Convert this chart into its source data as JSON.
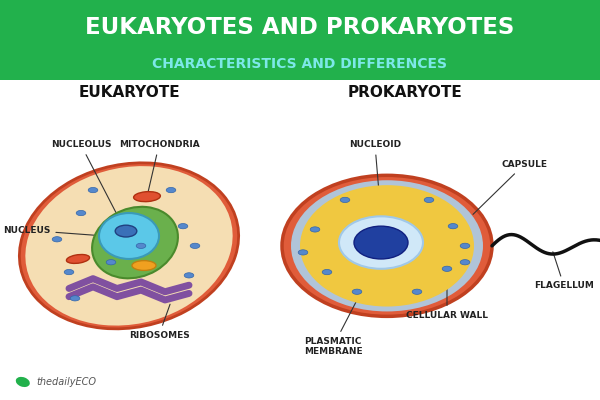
{
  "title_line1": "EUKARYOTES AND PROKARYOTES",
  "title_line2": "CHARACTERISTICS AND DIFFERENCES",
  "title_bg": "#22b14c",
  "title_color1": "#ffffff",
  "title_color2": "#7de8e8",
  "body_bg": "#ffffff",
  "eukaryote_label": "EUKARYOTE",
  "prokaryote_label": "PROKARYOTE",
  "annotation_color": "#222222",
  "watermark": "thedailyECO",
  "watermark_color": "#555555",
  "leaf_color": "#22b14c",
  "euk_outer_color": "#e05c3a",
  "euk_inner_color": "#f5deb3",
  "euk_green_color": "#6ab04c",
  "euk_nucleus_color": "#5bc8e8",
  "euk_nucleolus_color": "#3a70b8",
  "euk_mito_color": "#e05030",
  "euk_er_color": "#8050a0",
  "euk_golgi_color": "#f0a020",
  "ribo_color": "#5588cc",
  "ribo_edge": "#3366aa",
  "prok_outer_color": "#e05c3a",
  "prok_mem_color": "#b0c4d8",
  "prok_cyto_color": "#f0c840",
  "prok_nucleoid_color": "#d0e8f8",
  "prok_dna_color": "#2040a0",
  "flagellum_color": "#111111"
}
